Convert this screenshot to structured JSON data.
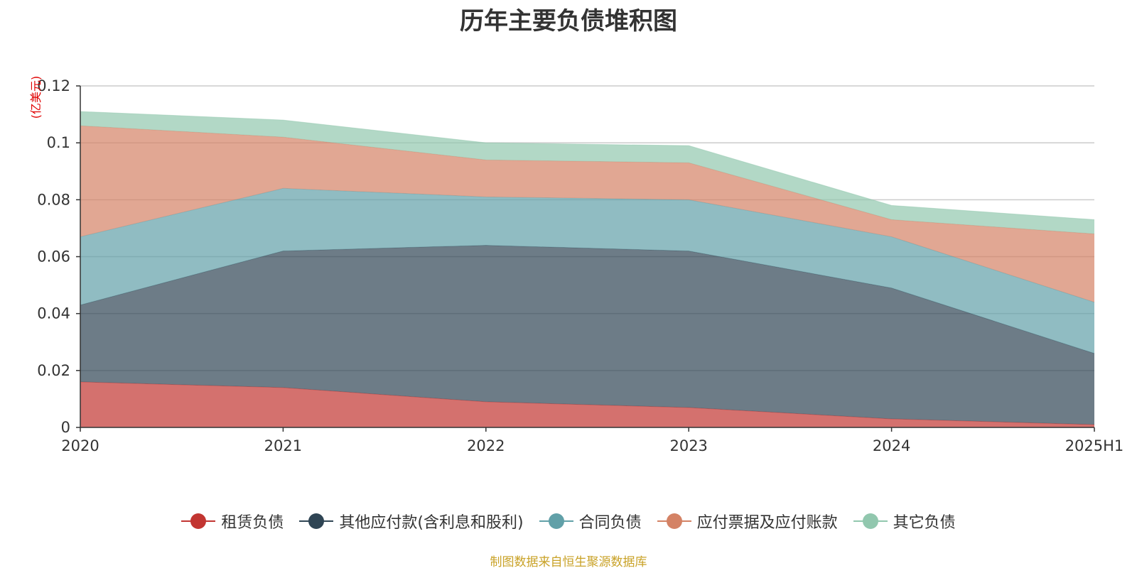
{
  "chart_data": {
    "type": "area",
    "stacked": true,
    "title": "历年主要负债堆积图",
    "unit_label": "(亿美元)",
    "x": [
      "2020",
      "2021",
      "2022",
      "2023",
      "2024",
      "2025H1"
    ],
    "ylim": [
      0,
      0.12
    ],
    "y_ticks": [
      "0",
      "0.02",
      "0.04",
      "0.06",
      "0.08",
      "0.1",
      "0.12"
    ],
    "grid": true,
    "legend_position": "bottom",
    "series": [
      {
        "name": "租赁负债",
        "color": "#c23531",
        "values": [
          0.016,
          0.014,
          0.009,
          0.007,
          0.003,
          0.001
        ]
      },
      {
        "name": "其他应付款(含利息和股利)",
        "color": "#2f4554",
        "values": [
          0.027,
          0.048,
          0.055,
          0.055,
          0.046,
          0.025
        ]
      },
      {
        "name": "合同负债",
        "color": "#61a0a8",
        "values": [
          0.024,
          0.022,
          0.017,
          0.018,
          0.018,
          0.018
        ]
      },
      {
        "name": "应付票据及应付账款",
        "color": "#d48265",
        "values": [
          0.039,
          0.018,
          0.013,
          0.013,
          0.006,
          0.024
        ]
      },
      {
        "name": "其它负债",
        "color": "#91c7ae",
        "values": [
          0.005,
          0.006,
          0.006,
          0.006,
          0.005,
          0.005
        ]
      }
    ]
  },
  "source_note": "制图数据来自恒生聚源数据库"
}
